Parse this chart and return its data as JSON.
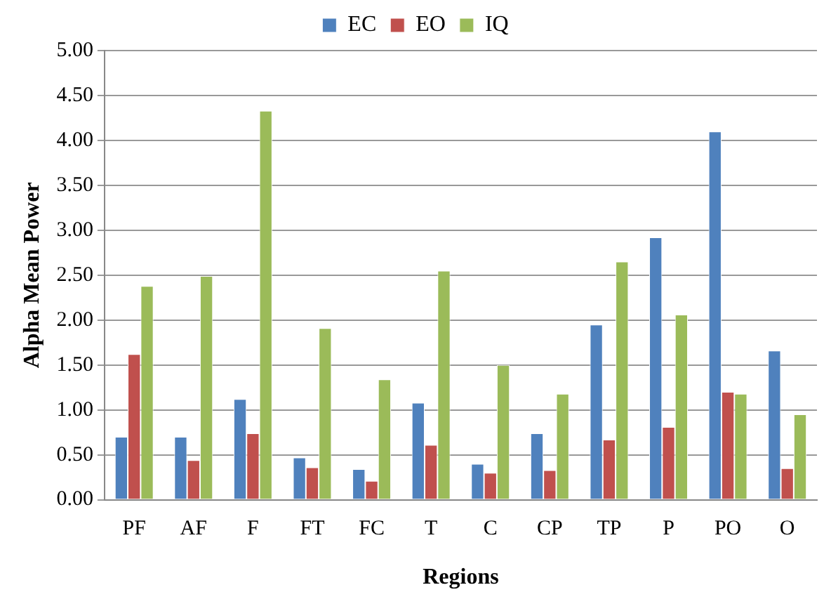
{
  "chart_data": {
    "type": "bar",
    "xlabel": "Regions",
    "ylabel": "Alpha Mean Power",
    "categories": [
      "PF",
      "AF",
      "F",
      "FT",
      "FC",
      "T",
      "C",
      "CP",
      "TP",
      "P",
      "PO",
      "O"
    ],
    "series": [
      {
        "name": "EC",
        "color": "#4f81bd",
        "values": [
          0.7,
          0.7,
          1.12,
          0.47,
          0.34,
          1.08,
          0.4,
          0.74,
          1.95,
          2.92,
          4.1,
          1.66
        ]
      },
      {
        "name": "EO",
        "color": "#c0504d",
        "values": [
          1.62,
          0.44,
          0.74,
          0.36,
          0.21,
          0.61,
          0.3,
          0.33,
          0.67,
          0.81,
          1.2,
          0.35
        ]
      },
      {
        "name": "IQ",
        "color": "#9bbb59",
        "values": [
          2.38,
          2.49,
          4.33,
          1.91,
          1.34,
          2.55,
          1.5,
          1.18,
          2.65,
          2.06,
          1.18,
          0.95
        ]
      }
    ],
    "ylim": [
      0,
      5
    ],
    "yticks": [
      {
        "value": 0,
        "label": "0.00"
      },
      {
        "value": 0.5,
        "label": "0.50"
      },
      {
        "value": 1,
        "label": "1.00"
      },
      {
        "value": 1.5,
        "label": "1.50"
      },
      {
        "value": 2,
        "label": "2.00"
      },
      {
        "value": 2.5,
        "label": "2.50"
      },
      {
        "value": 3,
        "label": "3.00"
      },
      {
        "value": 3.5,
        "label": "3.50"
      },
      {
        "value": 4,
        "label": "4.00"
      },
      {
        "value": 4.5,
        "label": "4.50"
      },
      {
        "value": 5,
        "label": "5.00"
      }
    ],
    "grid": "y",
    "legend": "top"
  }
}
